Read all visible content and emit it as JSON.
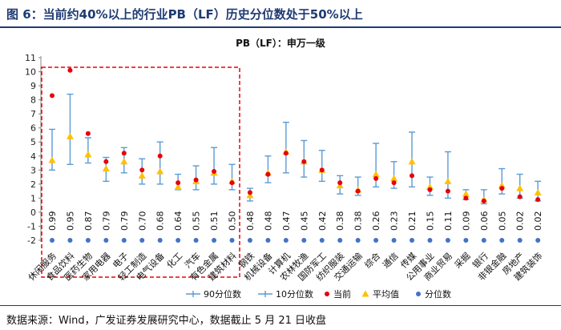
{
  "figure": {
    "title": "图 6：当前约40%以上的行业PB（LF）历史分位数处于50%以上",
    "source": "数据来源：Wind，广发证券发展研究中心，数据截止 5 月 21 日收盘"
  },
  "colors": {
    "p90": "#5b9bd5",
    "p10": "#5b9bd5",
    "current": "#e8000b",
    "average": "#ffc000",
    "percentile": "#4472c4",
    "highlight_box": "#e8000b",
    "title": "#1f3b73"
  },
  "chart_data": {
    "type": "scatter",
    "title": "PB（LF）：申万一级",
    "ylim": [
      -2,
      11
    ],
    "yticks": [
      -2,
      -1,
      0,
      1,
      2,
      3,
      4,
      5,
      6,
      7,
      8,
      9,
      10,
      11
    ],
    "grid": false,
    "legend_position": "bottom",
    "categories": [
      "休闲服务",
      "食品饮料",
      "医药生物",
      "家用电器",
      "电子",
      "轻工制造",
      "电气设备",
      "化工",
      "汽车",
      "有色金属",
      "建筑材料",
      "钢铁",
      "机械设备",
      "计算机",
      "农林牧渔",
      "国防军工",
      "纺织服装",
      "交通运输",
      "综合",
      "通信",
      "传媒",
      "公用事业",
      "商业贸易",
      "采掘",
      "银行",
      "非银金融",
      "房地产",
      "建筑装饰"
    ],
    "series": [
      {
        "name": "90分位数",
        "values": [
          5.9,
          8.4,
          5.3,
          3.9,
          4.6,
          3.8,
          5.0,
          2.7,
          3.3,
          4.6,
          3.4,
          1.7,
          4.0,
          6.4,
          5.1,
          4.4,
          2.6,
          2.5,
          4.9,
          3.6,
          5.7,
          2.5,
          4.3,
          1.6,
          1.6,
          3.1,
          2.7,
          2.2
        ]
      },
      {
        "name": "10分位数",
        "values": [
          3.0,
          3.4,
          3.5,
          2.2,
          2.8,
          2.0,
          2.0,
          1.6,
          1.6,
          2.0,
          1.6,
          0.8,
          2.1,
          2.8,
          2.5,
          2.2,
          1.3,
          1.2,
          1.8,
          1.7,
          1.8,
          1.2,
          1.0,
          0.9,
          0.6,
          1.3,
          1.0,
          0.8
        ]
      },
      {
        "name": "当前",
        "values": [
          8.3,
          10.1,
          5.6,
          3.6,
          4.2,
          3.0,
          4.0,
          2.1,
          2.3,
          2.9,
          2.1,
          1.4,
          2.7,
          4.2,
          3.6,
          3.0,
          2.1,
          1.5,
          2.4,
          2.1,
          2.6,
          1.6,
          1.5,
          1.0,
          0.8,
          1.7,
          1.1,
          0.9
        ]
      },
      {
        "name": "平均值",
        "values": [
          3.7,
          5.4,
          4.1,
          3.1,
          3.6,
          2.6,
          2.9,
          1.8,
          2.2,
          2.8,
          2.2,
          1.2,
          2.8,
          4.3,
          3.6,
          3.0,
          1.9,
          1.6,
          2.7,
          2.4,
          3.6,
          1.8,
          2.2,
          1.3,
          0.9,
          1.9,
          1.7,
          1.4
        ]
      },
      {
        "name": "分位数",
        "y": -2,
        "labels": [
          "0.99",
          "0.95",
          "0.87",
          "0.79",
          "0.79",
          "0.70",
          "0.68",
          "0.64",
          "0.55",
          "0.51",
          "0.50",
          "0.48",
          "0.48",
          "0.47",
          "0.45",
          "0.42",
          "0.38",
          "0.38",
          "0.26",
          "0.23",
          "0.21",
          "0.15",
          "0.11",
          "0.09",
          "0.06",
          "0.05",
          "0.02",
          "0.02"
        ]
      }
    ]
  }
}
